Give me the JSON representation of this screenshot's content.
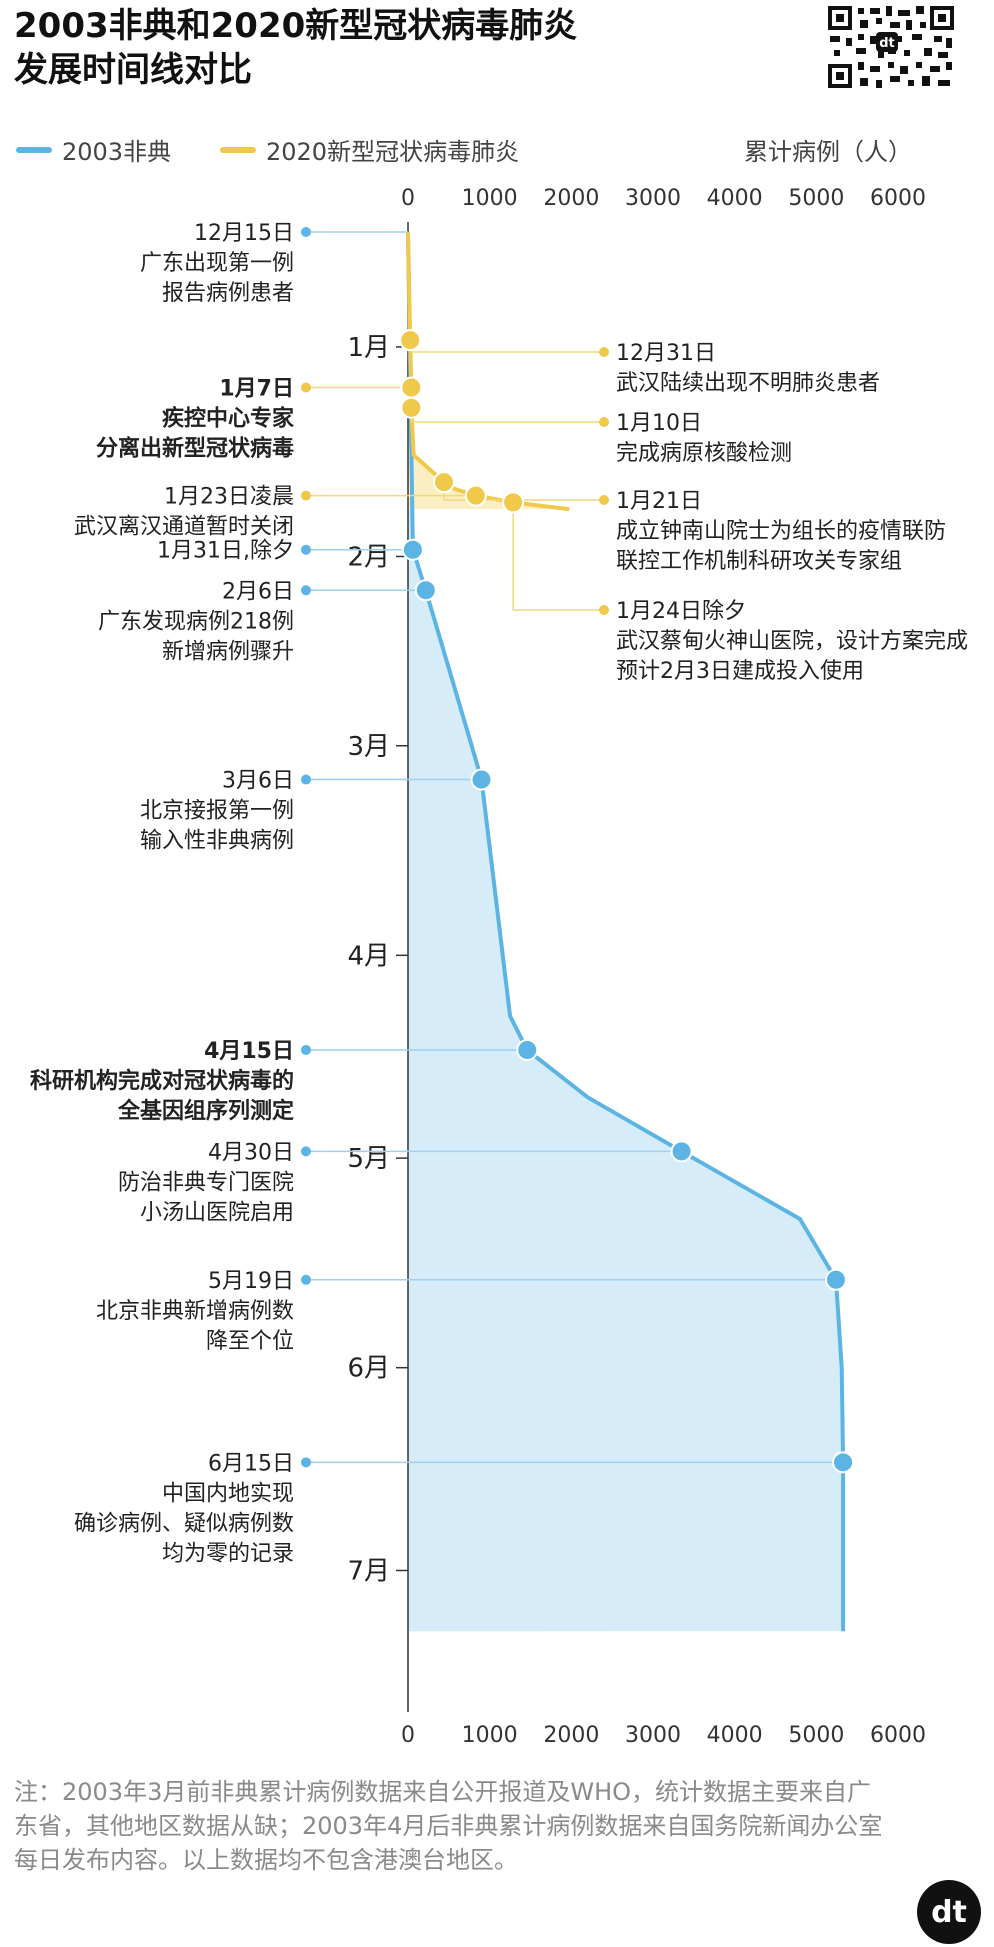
{
  "title_lines": [
    "2003非典和2020新型冠状病毒肺炎",
    "发展时间线对比"
  ],
  "logo_text": "dt",
  "chart_data": {
    "type": "area",
    "x_label": "累计病例（人）",
    "x_ticks": [
      0,
      1000,
      2000,
      3000,
      4000,
      5000,
      6000
    ],
    "x_range": [
      0,
      6000
    ],
    "y_axis": "date (month ticks)",
    "month_ticks": [
      "1月",
      "2月",
      "3月",
      "4月",
      "5月",
      "6月",
      "7月"
    ],
    "series": [
      {
        "name": "2003非典",
        "color": "#5bb4e3",
        "fill": "#d6edf9",
        "points": [
          {
            "date": "12月15日",
            "value": 0
          },
          {
            "date": "1月31日",
            "value": 60
          },
          {
            "date": "2月6日",
            "value": 218
          },
          {
            "date": "3月1日",
            "value": 780
          },
          {
            "date": "3月6日",
            "value": 900
          },
          {
            "date": "4月10日",
            "value": 1250
          },
          {
            "date": "4月15日",
            "value": 1460
          },
          {
            "date": "4月22日",
            "value": 2200
          },
          {
            "date": "4月30日",
            "value": 3350
          },
          {
            "date": "5月10日",
            "value": 4800
          },
          {
            "date": "5月19日",
            "value": 5240
          },
          {
            "date": "6月1日",
            "value": 5310
          },
          {
            "date": "6月15日",
            "value": 5327
          },
          {
            "date": "7月10日",
            "value": 5327
          }
        ],
        "markers": [
          {
            "date": "1月31日",
            "value": 60,
            "label": [
              "1月31日,除夕"
            ],
            "bold": false
          },
          {
            "date": "2月6日",
            "value": 218,
            "label": [
              "2月6日",
              "广东发现病例218例",
              "新增病例骤升"
            ],
            "bold": false
          },
          {
            "date": "3月6日",
            "value": 900,
            "label": [
              "3月6日",
              "北京接报第一例",
              "输入性非典病例"
            ],
            "bold": false
          },
          {
            "date": "4月15日",
            "value": 1460,
            "label": [
              "4月15日",
              "科研机构完成对冠状病毒的",
              "全基因组序列测定"
            ],
            "bold": true
          },
          {
            "date": "4月30日",
            "value": 3350,
            "label": [
              "4月30日",
              "防治非典专门医院",
              "小汤山医院启用"
            ],
            "bold": false
          },
          {
            "date": "5月19日",
            "value": 5240,
            "label": [
              "5月19日",
              "北京非典新增病例数",
              "降至个位"
            ],
            "bold": false
          },
          {
            "date": "6月15日",
            "value": 5327,
            "label": [
              "6月15日",
              "中国内地实现",
              "确诊病例、疑似病例数",
              "均为零的记录"
            ],
            "bold": false
          }
        ]
      },
      {
        "name": "2020新型冠状病毒肺炎",
        "color": "#f0c94a",
        "fill": "#fbeec2",
        "points": [
          {
            "date": "12月15日",
            "value": 0
          },
          {
            "date": "12月31日",
            "value": 27
          },
          {
            "date": "1月7日",
            "value": 41
          },
          {
            "date": "1月10日",
            "value": 41
          },
          {
            "date": "1月17日",
            "value": 70
          },
          {
            "date": "1月21日",
            "value": 440
          },
          {
            "date": "1月22日",
            "value": 571
          },
          {
            "date": "1月23日",
            "value": 830
          },
          {
            "date": "1月24日",
            "value": 1287
          },
          {
            "date": "1月25日",
            "value": 1975
          }
        ],
        "markers": [
          {
            "date": "12月31日",
            "value": 27,
            "label": [
              "12月31日",
              "武汉陆续出现不明肺炎患者"
            ],
            "side": "right",
            "bold": false
          },
          {
            "date": "1月7日",
            "value": 41,
            "label": [
              "1月7日",
              "疾控中心专家",
              "分离出新型冠状病毒"
            ],
            "side": "left",
            "bold": true
          },
          {
            "date": "1月10日",
            "value": 41,
            "label": [
              "1月10日",
              "完成病原核酸检测"
            ],
            "side": "right",
            "bold": false
          },
          {
            "date": "1月21日",
            "value": 440,
            "label": [
              "1月21日",
              "成立钟南山院士为组长的疫情联防",
              "联控工作机制科研攻关专家组"
            ],
            "side": "right",
            "bold": false
          },
          {
            "date": "1月23日",
            "value": 830,
            "label": [
              "1月23日凌晨",
              "武汉离汉通道暂时关闭"
            ],
            "side": "left",
            "bold": false
          },
          {
            "date": "1月24日",
            "value": 1287,
            "label": [
              "1月24日除夕",
              "武汉蔡甸火神山医院，设计方案完成",
              "预计2月3日建成投入使用"
            ],
            "side": "right",
            "bold": false
          }
        ]
      }
    ],
    "start_marker": {
      "date": "12月15日",
      "label": [
        "12月15日",
        "广东出现第一例",
        "报告病例患者"
      ]
    }
  },
  "note": "注：2003年3月前非典累计病例数据来自公开报道及WHO，统计数据主要来自广东省，其他地区数据从缺；2003年4月后非典累计病例数据来自国务院新闻办公室每日发布内容。以上数据均不包含港澳台地区。"
}
